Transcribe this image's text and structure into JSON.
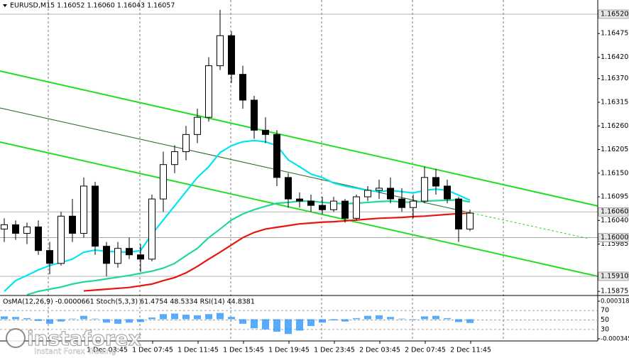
{
  "chart_data": {
    "type": "candlestick",
    "title": "EURUSD,M15 1.16052 1.16060 1.16043 1.16057",
    "time_labels": [
      "1 Dec 03:45",
      "1 Dec 07:45",
      "1 Dec 11:45",
      "1 Dec 15:45",
      "1 Dec 19:45",
      "1 Dec 23:45",
      "2 Dec 03:45",
      "2 Dec 07:45",
      "2 Dec 11:45"
    ],
    "open": [
      1.1602,
      1.1603,
      1.1601,
      1.16025,
      1.1597,
      1.1594,
      1.1605,
      1.1601,
      1.1612,
      1.1598,
      1.1594,
      1.15975,
      1.1596,
      1.1595,
      1.1609,
      1.1617,
      1.162,
      1.1624,
      1.1628,
      1.164,
      1.1647,
      1.1638,
      1.1632,
      1.1625,
      1.1624,
      1.1614,
      1.1609,
      1.16085,
      1.16075,
      1.16065,
      1.16085,
      1.16045,
      1.16095,
      1.1611,
      1.16115,
      1.1609,
      1.1607,
      1.16085,
      1.1614,
      1.1612,
      1.1609,
      1.1602
    ],
    "high": [
      1.16045,
      1.1604,
      1.16035,
      1.1604,
      1.1599,
      1.1606,
      1.1609,
      1.1614,
      1.1613,
      1.1599,
      1.1599,
      1.16,
      1.15985,
      1.161,
      1.162,
      1.16215,
      1.1626,
      1.163,
      1.1642,
      1.1653,
      1.1648,
      1.164,
      1.1633,
      1.1628,
      1.1625,
      1.1615,
      1.16105,
      1.161,
      1.16095,
      1.16095,
      1.1609,
      1.161,
      1.1612,
      1.16135,
      1.1614,
      1.16115,
      1.161,
      1.16165,
      1.1616,
      1.16135,
      1.16095,
      1.16065
    ],
    "low": [
      1.1599,
      1.15995,
      1.15985,
      1.1596,
      1.15915,
      1.15935,
      1.1599,
      1.16,
      1.1596,
      1.1591,
      1.1593,
      1.1595,
      1.1592,
      1.15945,
      1.1606,
      1.1615,
      1.1618,
      1.1622,
      1.1627,
      1.1639,
      1.1636,
      1.163,
      1.1623,
      1.1622,
      1.1612,
      1.1607,
      1.1607,
      1.1606,
      1.16055,
      1.1606,
      1.16035,
      1.1604,
      1.16085,
      1.1609,
      1.1608,
      1.1606,
      1.16045,
      1.1608,
      1.161,
      1.1608,
      1.1599,
      1.16015
    ],
    "close": [
      1.1603,
      1.1601,
      1.16025,
      1.1597,
      1.1594,
      1.1605,
      1.1601,
      1.1612,
      1.1598,
      1.1594,
      1.15975,
      1.1596,
      1.1595,
      1.1609,
      1.1617,
      1.162,
      1.1624,
      1.1628,
      1.164,
      1.1647,
      1.1638,
      1.1632,
      1.1625,
      1.1624,
      1.1614,
      1.1609,
      1.16085,
      1.16075,
      1.16065,
      1.16085,
      1.16045,
      1.16095,
      1.1611,
      1.16115,
      1.1609,
      1.1607,
      1.16085,
      1.1614,
      1.1612,
      1.1609,
      1.1602,
      1.16057
    ],
    "series": [
      {
        "color": "#00e5ee",
        "values": [
          1.15875,
          1.159,
          1.15912,
          1.15925,
          1.15935,
          1.15942,
          1.1595,
          1.15966,
          1.15971,
          1.15968,
          1.15967,
          1.15966,
          1.1597,
          1.16008,
          1.16041,
          1.16074,
          1.16107,
          1.1614,
          1.16165,
          1.16198,
          1.16214,
          1.16223,
          1.16226,
          1.16223,
          1.16214,
          1.16181,
          1.16165,
          1.16148,
          1.1614,
          1.16127,
          1.1612,
          1.16115,
          1.1611,
          1.16107,
          1.1611,
          1.16107,
          1.16104,
          1.1611,
          1.16113,
          1.1611,
          1.16099,
          1.16087
        ]
      },
      {
        "color": "#20d89a",
        "values": [
          null,
          null,
          1.15867,
          1.15875,
          1.1588,
          1.15885,
          1.15892,
          1.15897,
          1.159,
          1.15904,
          1.15908,
          1.15912,
          1.15917,
          1.15922,
          1.15929,
          1.1594,
          1.15958,
          1.15975,
          1.16,
          1.1602,
          1.16041,
          1.16055,
          1.16065,
          1.16073,
          1.1608,
          1.16082,
          1.16085,
          1.16085,
          1.16082,
          1.1608,
          1.16079,
          1.1608,
          1.16082,
          1.16084,
          1.16085,
          1.16083,
          1.16082,
          1.16085,
          1.16086,
          1.16087,
          1.16088,
          1.16083
        ]
      },
      {
        "color": "#e8150e",
        "values": [
          null,
          null,
          null,
          null,
          null,
          null,
          null,
          1.15876,
          1.15878,
          1.1588,
          1.15882,
          1.15884,
          1.15888,
          1.15892,
          1.159,
          1.15907,
          1.15918,
          1.15933,
          1.1595,
          1.15966,
          1.15983,
          1.16,
          1.16012,
          1.1602,
          1.16024,
          1.16028,
          1.16032,
          1.16034,
          1.16036,
          1.16037,
          1.16039,
          1.16041,
          1.16043,
          1.16045,
          1.16046,
          1.16047,
          1.16049,
          1.1605,
          1.16052,
          1.16054,
          1.16056,
          1.16057
        ]
      }
    ],
    "ylim": [
      1.15867,
      1.16553
    ],
    "yticks": [
      1.16475,
      {
        "value": 1.1642,
        "label": "1.16420"
      },
      {
        "value": 1.1637,
        "label": "1.16370"
      },
      1.16315,
      {
        "value": 1.1626,
        "label": "1.16260"
      },
      1.16205,
      {
        "value": 1.1615,
        "label": "1.16150"
      },
      1.16095,
      {
        "value": 1.1604,
        "label": "1.16040"
      },
      1.15985,
      1.15875
    ],
    "level_ticks": [
      {
        "value": 1.1652,
        "label": "1.16520"
      },
      {
        "value": 1.1606,
        "label": "1.16060"
      },
      {
        "value": 1.16,
        "label": "1.16000"
      },
      {
        "value": 1.1591,
        "label": "1.15910"
      }
    ],
    "oscillator": {
      "label": "OsMA(12,26,9) -0.0000661 Stoch(5,3,3) 61.4754 48.5334 RSI(14) 44.8381",
      "color": "#1e8fff",
      "values": [
        5e-05,
        4e-05,
        2e-05,
        -3e-05,
        -8e-05,
        -4e-05,
        1e-05,
        6e-05,
        1e-05,
        -6e-05,
        -8e-05,
        -6e-05,
        -5e-05,
        3e-05,
        9e-05,
        0.0001,
        8e-05,
        7e-05,
        9e-05,
        0.00011,
        4e-05,
        -8e-05,
        -0.00016,
        -0.00018,
        -0.00022,
        -0.00026,
        -0.0002,
        -0.00012,
        -6e-05,
        -2e-05,
        -4e-05,
        2e-05,
        6e-05,
        7e-05,
        4e-05,
        1e-05,
        0,
        5e-05,
        6e-05,
        2e-05,
        -5e-05,
        -6.61e-05
      ],
      "ylim": [
        -0.000345,
        0.000318
      ],
      "yticks": [
        0.000318,
        -0.000345
      ],
      "level_ylim": [
        0,
        100
      ],
      "level_ticks": [
        70,
        50,
        30
      ]
    }
  },
  "watermark": {
    "brand": "instaforex",
    "tagline": "Instant Forex Trading"
  }
}
